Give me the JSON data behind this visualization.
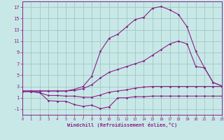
{
  "background_color": "#c8e8e8",
  "grid_color": "#a0c8c0",
  "line_color": "#882288",
  "xlabel": "Windchill (Refroidissement éolien,°C)",
  "xlim": [
    0,
    23
  ],
  "ylim": [
    -2.0,
    18.0
  ],
  "xticks": [
    0,
    1,
    2,
    3,
    4,
    5,
    6,
    7,
    8,
    9,
    10,
    11,
    12,
    13,
    14,
    15,
    16,
    17,
    18,
    19,
    20,
    21,
    22,
    23
  ],
  "yticks": [
    -1,
    1,
    3,
    5,
    7,
    9,
    11,
    13,
    15,
    17
  ],
  "curve1_x": [
    0,
    1,
    2,
    3,
    4,
    5,
    6,
    7,
    8,
    9,
    10,
    11,
    12,
    13,
    14,
    15,
    16,
    17,
    18,
    19,
    20,
    21,
    22,
    23
  ],
  "curve1_y": [
    2.1,
    2.1,
    1.9,
    1.4,
    1.4,
    1.3,
    1.3,
    1.1,
    1.1,
    1.5,
    2.0,
    2.2,
    2.4,
    2.7,
    2.9,
    3.0,
    3.0,
    3.0,
    3.0,
    3.0,
    3.0,
    3.0,
    3.0,
    3.0
  ],
  "curve2_x": [
    0,
    1,
    2,
    3,
    4,
    5,
    6,
    7,
    8,
    9,
    10,
    11,
    12,
    13,
    14,
    15,
    16,
    17,
    18,
    19,
    20,
    21,
    22,
    23
  ],
  "curve2_y": [
    2.1,
    2.1,
    1.9,
    0.5,
    0.4,
    0.4,
    -0.2,
    -0.5,
    -0.3,
    -0.9,
    -0.6,
    1.0,
    1.0,
    1.2,
    1.2,
    1.3,
    1.3,
    1.3,
    1.3,
    1.3,
    1.3,
    1.3,
    1.3,
    1.3
  ],
  "curve3_x": [
    0,
    1,
    2,
    3,
    4,
    5,
    6,
    7,
    8,
    9,
    10,
    11,
    12,
    13,
    14,
    15,
    16,
    17,
    18,
    19,
    20,
    21,
    22,
    23
  ],
  "curve3_y": [
    2.2,
    2.2,
    2.2,
    2.2,
    2.2,
    2.2,
    2.3,
    2.6,
    3.3,
    4.5,
    5.5,
    6.0,
    6.5,
    7.0,
    7.5,
    8.5,
    9.5,
    10.5,
    11.0,
    10.5,
    6.5,
    6.3,
    3.7,
    3.1
  ],
  "curve4_x": [
    0,
    1,
    2,
    3,
    4,
    5,
    6,
    7,
    8,
    9,
    10,
    11,
    12,
    13,
    14,
    15,
    16,
    17,
    18,
    19,
    20,
    21,
    22,
    23
  ],
  "curve4_y": [
    2.2,
    2.2,
    2.2,
    2.2,
    2.2,
    2.2,
    2.5,
    3.0,
    4.8,
    9.2,
    11.5,
    12.2,
    13.5,
    14.8,
    15.2,
    16.8,
    17.1,
    16.5,
    15.7,
    13.5,
    9.2,
    6.3,
    3.7,
    3.1
  ]
}
